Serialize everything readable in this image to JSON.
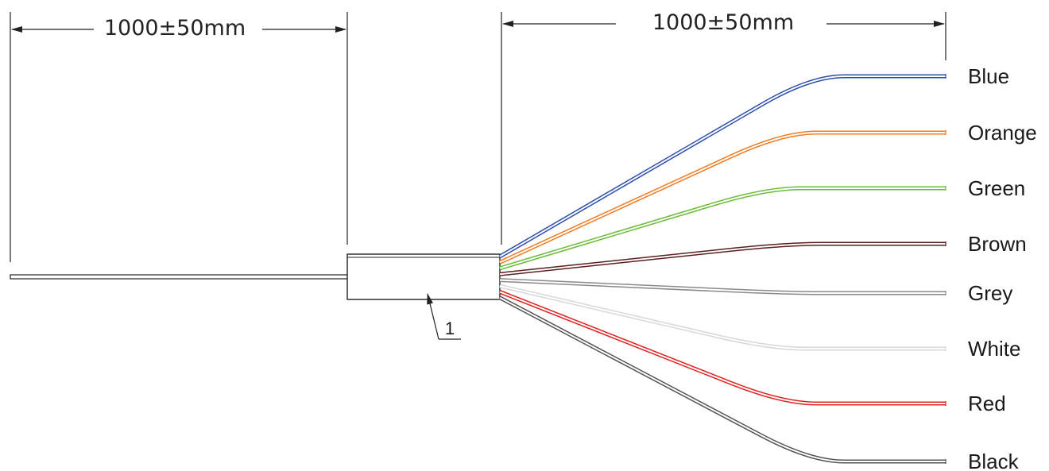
{
  "dimensions": {
    "left": "1000±50mm",
    "right": "1000±50mm"
  },
  "callout": "1",
  "fibers": [
    {
      "label": "Blue",
      "color": "#2e4fa8"
    },
    {
      "label": "Orange",
      "color": "#f07a22"
    },
    {
      "label": "Green",
      "color": "#6cbb3c"
    },
    {
      "label": "Brown",
      "color": "#5a1f1f"
    },
    {
      "label": "Grey",
      "color": "#8a8a8a"
    },
    {
      "label": "White",
      "color": "#d8d8d8"
    },
    {
      "label": "Red",
      "color": "#e02020"
    },
    {
      "label": "Black",
      "color": "#555555"
    }
  ]
}
